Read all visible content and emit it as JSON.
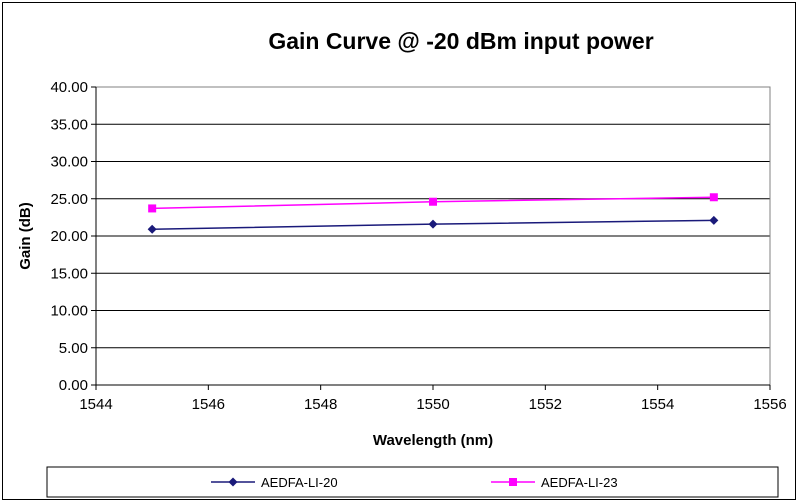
{
  "chart_data": {
    "type": "line",
    "title": "Gain Curve @ -20 dBm input power",
    "xlabel": "Wavelength (nm)",
    "ylabel": "Gain (dB)",
    "xlim": [
      1544,
      1556
    ],
    "ylim": [
      0,
      40
    ],
    "x_ticks": [
      "1544",
      "1546",
      "1548",
      "1550",
      "1552",
      "1554",
      "1556"
    ],
    "y_ticks": [
      "0.00",
      "5.00",
      "10.00",
      "15.00",
      "20.00",
      "25.00",
      "30.00",
      "35.00",
      "40.00"
    ],
    "grid": "horizontal",
    "legend_position": "bottom",
    "series": [
      {
        "name": "AEDFA-LI-20",
        "color": "#1a1a7a",
        "marker": "diamond",
        "points": [
          {
            "x": 1545,
            "y": 20.9
          },
          {
            "x": 1550,
            "y": 21.6
          },
          {
            "x": 1555,
            "y": 22.1
          }
        ]
      },
      {
        "name": "AEDFA-LI-23",
        "color": "#ff00ff",
        "marker": "square",
        "points": [
          {
            "x": 1545,
            "y": 23.7
          },
          {
            "x": 1550,
            "y": 24.6
          },
          {
            "x": 1555,
            "y": 25.2
          }
        ]
      }
    ]
  }
}
